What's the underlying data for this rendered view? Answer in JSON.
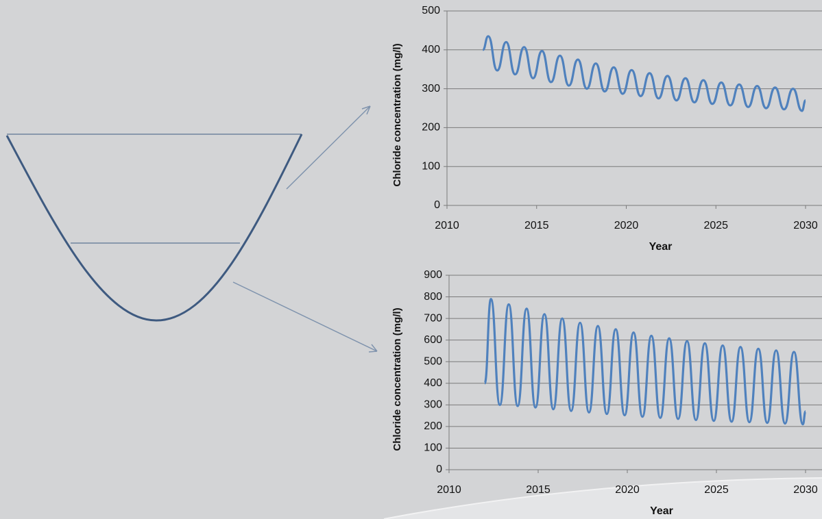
{
  "chart_data": [
    {
      "type": "line",
      "xlabel": "Year",
      "ylabel": "Chloride concentration (mg/l)",
      "color": "#4f81bd",
      "grid": true,
      "xlim": [
        2010,
        2030
      ],
      "xticks": [
        2010,
        2015,
        2020,
        2025,
        2030
      ],
      "ylim": [
        0,
        500
      ],
      "yticks": [
        0,
        100,
        200,
        300,
        400,
        500
      ],
      "x": [
        2012,
        2012.3,
        2012.8,
        2013.3,
        2013.8,
        2014.3,
        2014.8,
        2015.3,
        2015.8,
        2016.3,
        2016.8,
        2017.3,
        2017.8,
        2018.3,
        2018.8,
        2019.3,
        2019.8,
        2020.3,
        2020.8,
        2021.3,
        2021.8,
        2022.3,
        2022.8,
        2023.3,
        2023.8,
        2024.3,
        2024.8,
        2025.3,
        2025.8,
        2026.3,
        2026.8,
        2027.3,
        2027.8,
        2028.3,
        2028.8,
        2029.3,
        2029.8,
        2030
      ],
      "values": [
        400,
        435,
        347,
        420,
        337,
        407,
        327,
        397,
        317,
        385,
        308,
        375,
        300,
        365,
        293,
        355,
        287,
        348,
        281,
        340,
        275,
        333,
        270,
        327,
        265,
        322,
        261,
        316,
        257,
        311,
        253,
        307,
        250,
        303,
        247,
        300,
        243,
        270
      ]
    },
    {
      "type": "line",
      "xlabel": "Year",
      "ylabel": "Chloride concentration (mg/l)",
      "color": "#4f81bd",
      "grid": true,
      "xlim": [
        2010,
        2030
      ],
      "xticks": [
        2010,
        2015,
        2020,
        2025,
        2030
      ],
      "ylim": [
        0,
        900
      ],
      "yticks": [
        0,
        100,
        200,
        300,
        400,
        500,
        600,
        700,
        800,
        900
      ],
      "x": [
        2012,
        2012.35,
        2012.85,
        2013.35,
        2013.85,
        2014.35,
        2014.85,
        2015.35,
        2015.85,
        2016.35,
        2016.85,
        2017.35,
        2017.85,
        2018.35,
        2018.85,
        2019.35,
        2019.85,
        2020.35,
        2020.85,
        2021.35,
        2021.85,
        2022.35,
        2022.85,
        2023.35,
        2023.85,
        2024.35,
        2024.85,
        2025.35,
        2025.85,
        2026.35,
        2026.85,
        2027.35,
        2027.85,
        2028.35,
        2028.85,
        2029.35,
        2029.85,
        2030
      ],
      "values": [
        400,
        790,
        300,
        765,
        295,
        745,
        288,
        720,
        280,
        700,
        272,
        680,
        265,
        665,
        258,
        650,
        252,
        635,
        245,
        620,
        240,
        608,
        235,
        595,
        230,
        585,
        226,
        575,
        222,
        568,
        220,
        560,
        217,
        552,
        214,
        545,
        210,
        270
      ]
    }
  ]
}
